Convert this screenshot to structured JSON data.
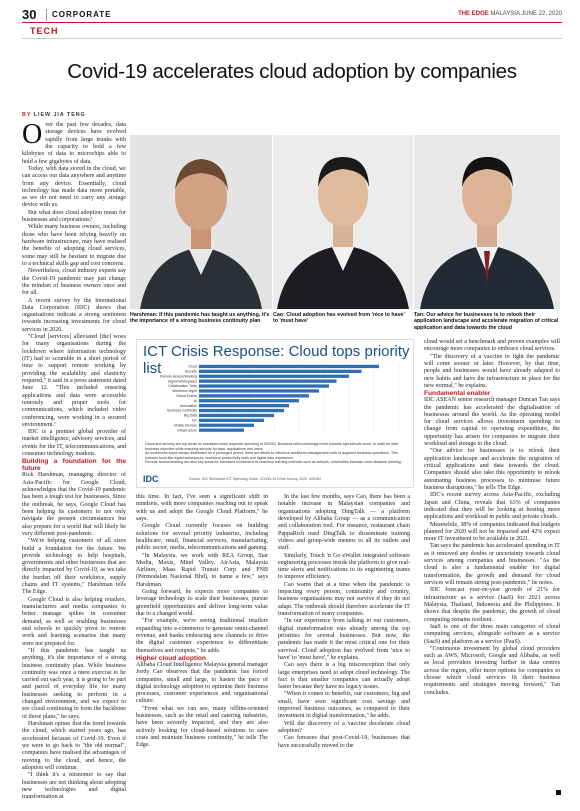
{
  "header": {
    "page_number": "30",
    "section": "CORPORATE",
    "masthead_brand": "THE EDGE",
    "masthead_rest": " MALAYSIA  JUNE 22, 2020",
    "subsection": "TECH"
  },
  "headline": "Covid-19 accelerates cloud adoption by companies",
  "byline": {
    "by": "BY ",
    "author": "LIEW JIA TENG"
  },
  "captions": {
    "c1": "Harshman: If this pandemic has taught us anything, it's the importance of a strong business continuity plan",
    "c2": "Cao: Cloud adoption has evolved from 'nice to have' to 'must have'",
    "c3": "Tan: Our advice for businesses is to relook their application landscape and accelerate migration of critical application and data towards the cloud"
  },
  "col1": {
    "dropcap": "O",
    "p1": "ver the past few decades, data storage devices have evolved rapidly from large trunks with the capacity to hold a few kilobytes of data to microchips able to hold a few gigabytes of data.",
    "p2": "Today, with data stored in the cloud, we can access our data anywhere and anytime from any device. Essentially, cloud technology has made data more portable, as we do not need to carry any storage device with us.",
    "p3": "But what does cloud adoption mean for businesses and corporations?",
    "p4": "While many business owners, including those who have been relying heavily on hardware infrastructure, may have realised the benefits of adopting cloud services, some may still be hesitant to migrate due to a technical skills gap and cost concerns.",
    "p5": "Nevertheless, cloud industry experts say the Covid-19 pandemic may just change the mindset of business owners once and for all.",
    "p6": "A recent survey by the International Data Corporation (IDC) shows that organisations indicate a strong sentiment towards increasing investments for cloud services in 2020.",
    "p7": "\"Cloud [services] alleviated [the] woes for many organisations during the lockdown where information technology (IT) had to scramble in a short period of time to support remote working by providing the scalability and elasticity required,\" it said in a press statement dated June 12. \"This included ensuring applications and data were accessible remotely and proper tools for communications, which included video conferencing, were working in a secured environment.\"",
    "p8": "IDC is a premier global provider of market intelligence, advisory services, and events for the IT, telecommunications, and consumer technology markets.",
    "sub1": "Building a foundation for the future",
    "p9": "Rick Harshman, managing director of Asia-Pacific for Google Cloud, acknowledges that the Covid-19 pandemic has been a tough test for businesses. Since the outbreak, he says, Google Cloud has been helping its customers to not only navigate the present circumstances but also prepare for a world that will likely be very different post-pandemic.",
    "p10": "\"We're helping customers of all sizes build a foundation for the future. We provide technology to help hospitals, governments and other businesses that are directly impacted by Covid-19, as we take the burden off their workforce, supply chains and IT systems,\" Harshman tells The Edge.",
    "p11": "Google Cloud is also helping retailers, manufacturers and media companies to better manage spikes in consumer demand, as well as enabling businesses and schools to quickly pivot to remote work and learning scenarios that many were not prepared for.",
    "p12": "\"If this pandemic has taught us anything, it's the importance of a strong business continuity plan. While business continuity was once a mere exercise to be carried out each year, it is going to be part and parcel of everyday life for many businesses seeking to perform in a changed environment, and we expect to see cloud continuing to form the backbone of those plans,\" he says.",
    "p13": "Harshman opines that the trend towards the cloud, which started years ago, has accelerated because of Covid-19. Even if we were to go back to \"the old normal\", companies have realised the advantages of moving to the cloud, and hence, the adoption will continue.",
    "p14": "\"I think it's a misnomer to say that businesses are not thinking about adopting new technologies and digital transformation at"
  },
  "col2": {
    "p1": "this time. In fact, I've seen a significant shift in mindsets, with more companies reaching out to speak with us and adopt the Google Cloud Platform,\" he says.",
    "p2": "Google Cloud currently focuses on building solutions for several priority industries, including healthcare, retail, financial services, manufacturing, public sector, media, telecommunications and gaming.",
    "p3": "\"In Malaysia, we work with REA Group, Star Media, Maxis, Mind Valley, AirAsia, Malaysia Airlines, Mass Rapid Transit Corp and PNB (Permodalan Nasional Bhd), to name a few,\" says Harshman.",
    "p4": "Going forward, he expects more companies to leverage technology to scale their businesses, pursue greenfield opportunities and deliver long-term value due to a changed world.",
    "p5": "\"For example, we're seeing traditional retailers expanding into e-commerce to generate omni-channel revenue, and banks embracing new channels to drive the digital customer experience to differentiate themselves and compete,\" he adds.",
    "sub1": "Higher cloud adoption",
    "p6": "Alibaba Cloud Intelligence Malaysia general manager Jordy Cao observes that the pandemic has forced companies, small and large, to hasten the pace of digital technology adoption to optimise their business processes, customer experiences and organisational culture.",
    "p7": "\"From what we can see, many offline-oriented businesses, such as the retail and catering industries, have been severely impacted, and they are also actively looking for cloud-based solutions to save costs and maintain business continuity,\" he tells The Edge."
  },
  "col3": {
    "p1": "In the last few months, says Cao, there has been a notable increase in Malaysian companies and organisations adopting DingTalk — a platform developed by Alibaba Group — as a communication and collaboration tool. For instance, restaurant chain PappaRich used DingTalk to disseminate training videos and group-wide memos to all its outlets and staff.",
    "p2": "Similarly, Touch 'n Go eWallet integrated software engineering processes inside the platform to give real-time alerts and notifications to its engineering teams to improve efficiency.",
    "p3": "Cao warns that at a time when the pandemic is impacting every person, community and country, business organisations may not survive if they do not adapt. The outbreak should therefore accelerate the IT transformation of many companies.",
    "p4": "\"In our experience from talking to our customers, digital transformation was already among the top priorities for several businesses. But now, the pandemic has made it the most critical one for their survival. Cloud adoption has evolved from 'nice to have' to 'must have',\" he explains.",
    "p5": "Cao says there is a big misconception that only large enterprises need to adopt cloud technology. The fact is that smaller companies can actually adopt faster because they have no legacy issues.",
    "p6": "\"When it comes to benefits, our customers, big and small, have seen significant cost savings and improved business outcomes, as compared to their investment in digital transformation,\" he adds.",
    "p7": "Will the discovery of a vaccine decelerate cloud adoption?",
    "p8": "Cao foresees that post-Covid-19, businesses that have successfully moved to the"
  },
  "col4": {
    "p1": "cloud would set a benchmark and proven examples will encourage more companies to embrace cloud services.",
    "p2": "\"The discovery of a vaccine to fight the pandemic will come sooner or later. However, by that time, people and businesses would have already adapted to new habits and have the infrastructure in place for the new normal,\" he explains.",
    "sub1": "Fundamental enabler",
    "p3": "IDC ASEAN senior research manager Duncan Tan says the pandemic has accelerated the digitalisation of businesses around the world. As the operating model for cloud services allows investment spending to change from capital to operating expenditure, the opportunity has arisen for companies to migrate their workload and storage to the cloud.",
    "p4": "\"Our advice for businesses is to relook their application landscape and accelerate the migration of critical applications and data towards the cloud. Companies should also take this opportunity to relook automating business processes to minimise future business disruptions,\" he tells The Edge.",
    "p5": "IDC's recent survey across Asia-Pacific, excluding Japan and China, reveals that 63% of companies indicated that they will be looking at hosting more applications and workload in public and private clouds.",
    "p6": "Meanwhile, 38% of companies indicated that budgets planned for 2020 will not be impacted and 42% expect more IT investment to be available in 2021.",
    "p7": "Tan says the pandemic has accelerated spending in IT as it removed any doubts or uncertainty towards cloud services among companies and businesses. \"As the cloud is also a fundamental enabler for digital transformation, the growth and demand for cloud services will remain strong post-pandemic,\" he notes.",
    "p8": "IDC forecast year-on-year growth of 21% for infrastructure as a service (IaaS) for 2021 across Malaysia, Thailand, Indonesia and the Philippines. It shows that despite the pandemic, the growth of cloud computing remains resilient.",
    "p9": "IaaS is one of the three main categories of cloud computing services, alongside software as a service (SaaS) and platform as a service (PaaS).",
    "p10": "\"Continuous investment by global cloud providers such as AWS, Microsoft, Google and Alibaba, as well as local providers investing further in data centres across the region, offer more options for companies to choose which cloud services fit their business requirements and strategies moving forward,\" Tan concludes."
  },
  "chart": {
    "title": "ICT Crisis Response: Cloud tops priority list",
    "note1": "Cloud and security are top areas for sustained crisis response spending in ASEAN. Business will increasingly move towards hybrid/multi-cloud. In order for their business objective while ensuring security for data, applications and users.",
    "note2": "As workforces could remain distributed for a prolonged period, there are efforts to introduce workforce management tools to augment business operations. This includes tools like digital workspaces, workforce productivity tools and digital data experience.",
    "note3": "Remote access/working are also key areas for increased investment as business learning methods such as schools, universities increase more distance learning.",
    "logo": "IDC",
    "source": "Source: IDC Worldwide ICT Spending Guide, COVID-19 Crisis Survey, 2020, ASEAN"
  },
  "chart_data": {
    "type": "bar",
    "categories": [
      "Cloud",
      "Security",
      "Remote Access/Working",
      "Digital Workspaces",
      "Collaboration Tools",
      "Workforce Mgmt",
      "Virtual Events",
      "AI",
      "Automation",
      "Business Continuity",
      "Big Data",
      "IoT",
      "Mobile Devices",
      "Infrastructure"
    ],
    "values": [
      72,
      65,
      60,
      55,
      52,
      48,
      44,
      40,
      36,
      34,
      30,
      26,
      22,
      18
    ],
    "xlim": [
      0,
      80
    ],
    "bar_color": "#2f6fb5"
  }
}
